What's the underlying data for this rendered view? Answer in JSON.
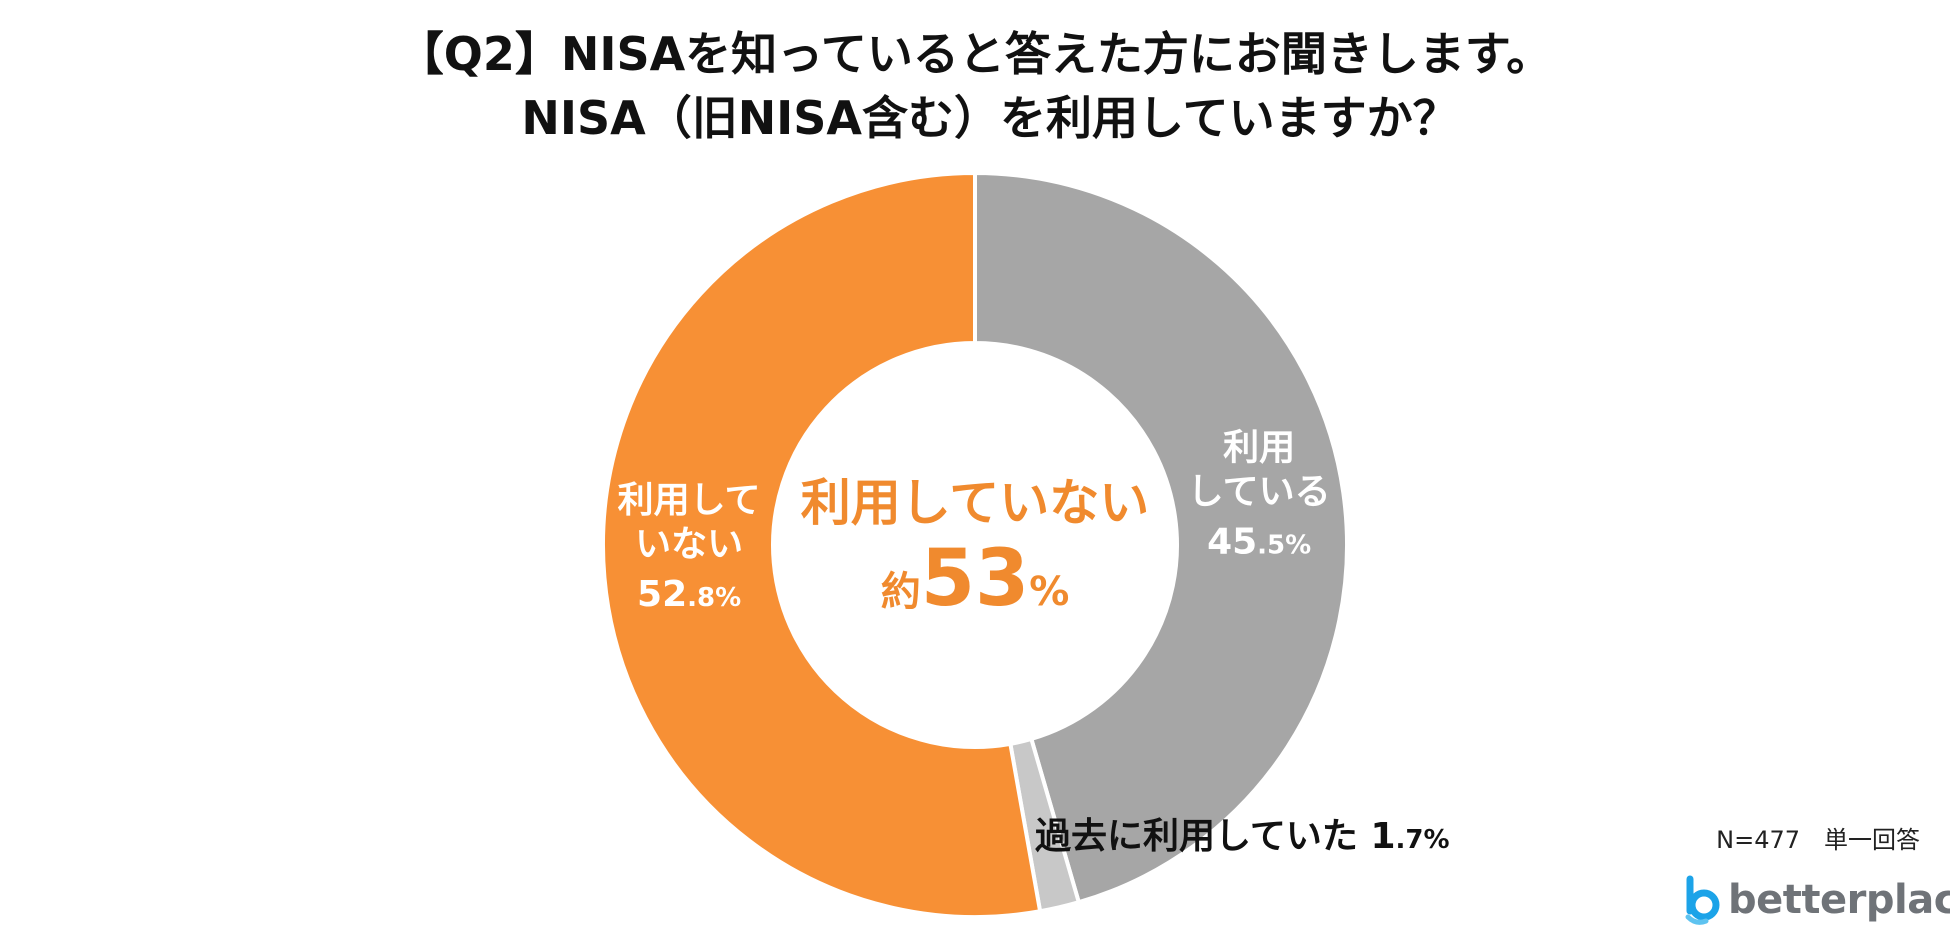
{
  "title": {
    "line1": "【Q2】NISAを知っていると答えた方にお聞きします。",
    "line2": "NISA（旧NISA含む）を利用していますか？"
  },
  "colors": {
    "not_using": "#F79035",
    "using": "#A6A6A6",
    "used_before": "#C8C8C8",
    "center_text": "#F08A2E",
    "label_white": "#FFFFFF",
    "label_dark": "#111111",
    "logo_blue": "#1CA3E8",
    "logo_text": "#6F7378"
  },
  "center": {
    "line1": "利用していない",
    "prefix": "約",
    "number": "53",
    "unit": "%"
  },
  "note": "N=477　単一回答",
  "logo": {
    "text": "betterplace",
    "icon": "betterplace-logo-icon"
  },
  "chart_data": {
    "type": "pie",
    "donut": true,
    "start": "top",
    "direction": "clockwise",
    "slices": [
      {
        "name": "利用している",
        "label_lines": [
          "利用",
          "している"
        ],
        "value": 45.5,
        "value_int": "45",
        "value_dec": ".5",
        "unit": "%",
        "color": "#A6A6A6",
        "label_color": "#FFFFFF"
      },
      {
        "name": "過去に利用していた",
        "label_lines": [
          "過去に利用していた"
        ],
        "value": 1.7,
        "value_int": "1",
        "value_dec": ".7",
        "unit": "%",
        "color": "#C8C8C8",
        "label_color": "#111111"
      },
      {
        "name": "利用していない",
        "label_lines": [
          "利用して",
          "いない"
        ],
        "value": 52.8,
        "value_int": "52",
        "value_dec": ".8",
        "unit": "%",
        "color": "#F79035",
        "label_color": "#FFFFFF"
      }
    ]
  }
}
